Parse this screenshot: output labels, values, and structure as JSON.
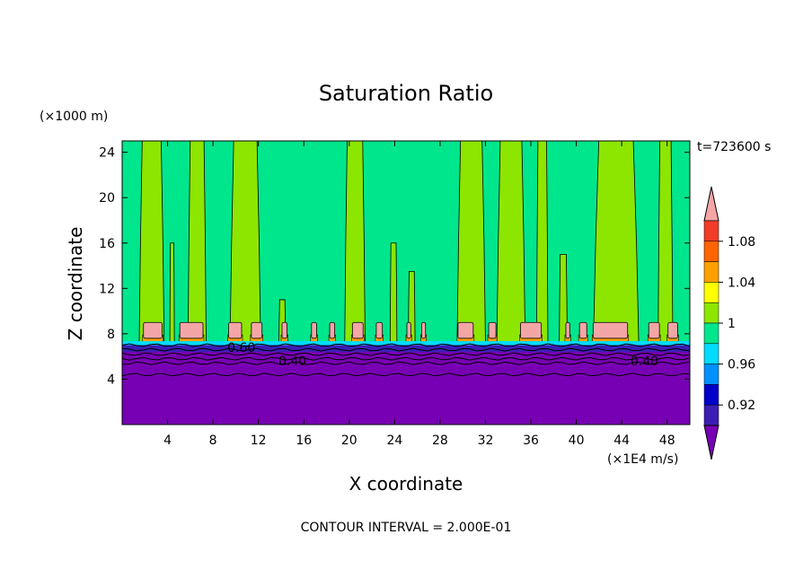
{
  "chart_data": {
    "type": "contour",
    "title": "Saturation Ratio",
    "xlabel": "X coordinate",
    "ylabel": "Z coordinate",
    "x_unit": "(×1E4 m/s)",
    "y_unit": "(×1000 m)",
    "time_label": "t=723600 s",
    "footer": "CONTOUR INTERVAL = 2.000E-01",
    "xlim": [
      0,
      50
    ],
    "ylim": [
      0,
      25
    ],
    "x_ticks": [
      4,
      8,
      12,
      16,
      20,
      24,
      28,
      32,
      36,
      40,
      44,
      48
    ],
    "y_ticks": [
      4,
      8,
      12,
      16,
      20,
      24
    ],
    "x_tick_labels": [
      "4",
      "8",
      "12",
      "16",
      "20",
      "24",
      "28",
      "32",
      "36",
      "40",
      "44",
      "48"
    ],
    "y_tick_labels": [
      "4",
      "8",
      "12",
      "16",
      "20",
      "24"
    ],
    "contour_labels": [
      {
        "text": "0.60",
        "x": 10.5,
        "y": 6.8
      },
      {
        "text": "0.40",
        "x": 15.0,
        "y": 5.6
      },
      {
        "text": "0.40",
        "x": 46.0,
        "y": 5.6
      }
    ],
    "colorbar": {
      "tick_labels": [
        "1.08",
        "1.04",
        "1",
        "0.96",
        "0.92"
      ],
      "tick_values": [
        1.08,
        1.04,
        1.0,
        0.96,
        0.92
      ],
      "levels": [
        {
          "range": [
            1.1,
            null
          ],
          "color": "#f4a6a6"
        },
        {
          "range": [
            1.08,
            1.1
          ],
          "color": "#f03c28"
        },
        {
          "range": [
            1.06,
            1.08
          ],
          "color": "#ff6400"
        },
        {
          "range": [
            1.04,
            1.06
          ],
          "color": "#ffa000"
        },
        {
          "range": [
            1.02,
            1.04
          ],
          "color": "#ffff00"
        },
        {
          "range": [
            1.0,
            1.02
          ],
          "color": "#8ce600"
        },
        {
          "range": [
            0.98,
            1.0
          ],
          "color": "#00e68c"
        },
        {
          "range": [
            0.96,
            0.98
          ],
          "color": "#00dcff"
        },
        {
          "range": [
            0.94,
            0.96
          ],
          "color": "#0090ff"
        },
        {
          "range": [
            0.92,
            0.94
          ],
          "color": "#0000c8"
        },
        {
          "range": [
            0.9,
            0.92
          ],
          "color": "#3c1eb4"
        },
        {
          "range": [
            null,
            0.9
          ],
          "color": "#7800b4"
        }
      ]
    },
    "background_level_color": "#00e68c",
    "moist_columns": [
      {
        "x0": 1.5,
        "x1": 3.7,
        "top": 25,
        "color": "#8ce600"
      },
      {
        "x0": 4.2,
        "x1": 4.6,
        "top": 16,
        "color": "#8ce600"
      },
      {
        "x0": 5.8,
        "x1": 7.4,
        "top": 25,
        "color": "#8ce600"
      },
      {
        "x0": 9.5,
        "x1": 12.2,
        "top": 25,
        "color": "#8ce600"
      },
      {
        "x0": 13.8,
        "x1": 14.4,
        "top": 11,
        "color": "#8ce600"
      },
      {
        "x0": 19.6,
        "x1": 21.4,
        "top": 25,
        "color": "#8ce600"
      },
      {
        "x0": 23.6,
        "x1": 24.2,
        "top": 16,
        "color": "#8ce600"
      },
      {
        "x0": 25.2,
        "x1": 25.8,
        "top": 13.5,
        "color": "#8ce600"
      },
      {
        "x0": 29.5,
        "x1": 32.0,
        "top": 25,
        "color": "#8ce600"
      },
      {
        "x0": 33.0,
        "x1": 35.5,
        "top": 25,
        "color": "#8ce600"
      },
      {
        "x0": 36.5,
        "x1": 37.5,
        "top": 25,
        "color": "#8ce600"
      },
      {
        "x0": 38.5,
        "x1": 39.2,
        "top": 15,
        "color": "#8ce600"
      },
      {
        "x0": 41.5,
        "x1": 45.5,
        "top": 25,
        "color": "#8ce600"
      },
      {
        "x0": 47.2,
        "x1": 48.5,
        "top": 25,
        "color": "#8ce600"
      }
    ],
    "cloud_bands": [
      {
        "x0": 1.8,
        "x1": 3.6
      },
      {
        "x0": 5.0,
        "x1": 7.2
      },
      {
        "x0": 9.3,
        "x1": 10.6
      },
      {
        "x0": 11.3,
        "x1": 12.4
      },
      {
        "x0": 14.0,
        "x1": 14.6
      },
      {
        "x0": 16.6,
        "x1": 17.2
      },
      {
        "x0": 18.2,
        "x1": 18.8
      },
      {
        "x0": 20.2,
        "x1": 21.3
      },
      {
        "x0": 22.3,
        "x1": 23.0
      },
      {
        "x0": 25.0,
        "x1": 25.5
      },
      {
        "x0": 26.3,
        "x1": 26.8
      },
      {
        "x0": 29.5,
        "x1": 31.0
      },
      {
        "x0": 32.2,
        "x1": 33.0
      },
      {
        "x0": 35.0,
        "x1": 37.0
      },
      {
        "x0": 39.0,
        "x1": 39.5
      },
      {
        "x0": 40.2,
        "x1": 41.0
      },
      {
        "x0": 41.4,
        "x1": 44.6
      },
      {
        "x0": 46.3,
        "x1": 47.4
      },
      {
        "x0": 48.0,
        "x1": 49.0
      }
    ],
    "dry_layer_top": 7.0,
    "dry_color": "#7800b4",
    "dry_band_color": "#3c1eb4",
    "contour_line_heights": [
      7.0,
      6.6,
      6.2,
      5.8,
      5.4,
      4.4
    ]
  }
}
